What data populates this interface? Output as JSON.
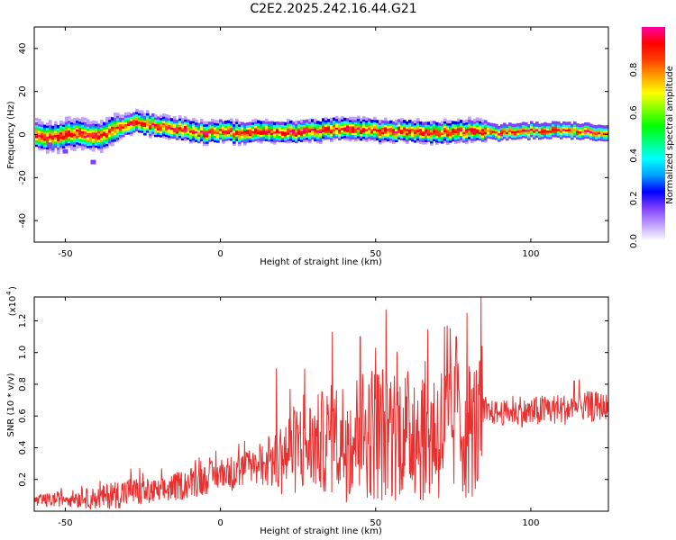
{
  "title": "C2E2.2025.242.16.44.G21",
  "chart_data": [
    {
      "type": "heatmap",
      "title": "C2E2.2025.242.16.44.G21",
      "xlabel": "Height of straight line (km)",
      "ylabel": "Frequency (Hz)",
      "xlim": [
        -60,
        125
      ],
      "ylim": [
        -50,
        50
      ],
      "xticks": [
        -50,
        0,
        50,
        100
      ],
      "yticks": [
        -40,
        -20,
        0,
        20,
        40
      ],
      "colorbar": {
        "label": "Normalized spectral amplitude",
        "range": [
          0,
          1
        ],
        "ticks": [
          "0.0",
          "0.2",
          "0.4",
          "0.6",
          "0.8"
        ],
        "colors": [
          "#ffffff",
          "#c0a0ff",
          "#8040ff",
          "#0000ff",
          "#00a0ff",
          "#00ffff",
          "#00ff80",
          "#00ff00",
          "#80ff00",
          "#ffff00",
          "#ffa000",
          "#ff4000",
          "#ff0000",
          "#ff00a0"
        ]
      },
      "ridge": {
        "x": [
          -60,
          -55,
          -50,
          -45,
          -40,
          -36,
          -32,
          -28,
          -24,
          -20,
          -15,
          -10,
          -5,
          0,
          5,
          10,
          20,
          30,
          40,
          50,
          60,
          70,
          80,
          90,
          100,
          110,
          125
        ],
        "frequency": [
          0,
          -1,
          0,
          1,
          -1,
          2,
          4,
          6,
          5,
          4,
          3,
          2,
          1,
          2,
          1,
          2,
          1,
          2,
          3,
          2,
          2,
          1,
          2,
          1,
          2,
          2,
          1
        ]
      },
      "outliers": [
        {
          "x": -41,
          "frequency": -13
        },
        {
          "x": -55,
          "frequency": -5
        },
        {
          "x": -50,
          "frequency": -8
        }
      ]
    },
    {
      "type": "line",
      "xlabel": "Height of straight line (km)",
      "ylabel": "SNR (10 * v/v)",
      "scale_label": "(x10",
      "scale_exponent": "4",
      "xlim": [
        -60,
        125
      ],
      "ylim": [
        0,
        1.35
      ],
      "xticks": [
        -50,
        0,
        50,
        100
      ],
      "yticks": [
        0.2,
        0.4,
        0.6,
        0.8,
        1.0,
        1.2
      ],
      "ytick_labels": [
        "0.2",
        "0.4",
        "0.6",
        "0.8",
        "1.0",
        "1.2"
      ],
      "color": "#e83030",
      "series": {
        "envelope_x": [
          -60,
          -50,
          -40,
          -30,
          -20,
          -10,
          -5,
          0,
          5,
          10,
          15,
          18,
          20,
          25,
          30,
          35,
          40,
          45,
          50,
          55,
          60,
          65,
          70,
          75,
          80,
          84,
          85,
          90,
          95,
          100,
          105,
          110,
          115,
          120,
          125
        ],
        "baseline": [
          0.06,
          0.08,
          0.08,
          0.12,
          0.12,
          0.18,
          0.2,
          0.24,
          0.24,
          0.28,
          0.3,
          0.3,
          0.35,
          0.4,
          0.42,
          0.45,
          0.45,
          0.5,
          0.5,
          0.5,
          0.5,
          0.5,
          0.5,
          0.52,
          0.52,
          0.52,
          0.62,
          0.62,
          0.62,
          0.62,
          0.64,
          0.64,
          0.65,
          0.66,
          0.66
        ],
        "amplitude": [
          0.04,
          0.05,
          0.07,
          0.1,
          0.08,
          0.1,
          0.1,
          0.1,
          0.12,
          0.12,
          0.15,
          0.2,
          0.25,
          0.3,
          0.3,
          0.35,
          0.4,
          0.4,
          0.45,
          0.45,
          0.4,
          0.45,
          0.45,
          0.45,
          0.45,
          0.45,
          0.08,
          0.08,
          0.08,
          0.1,
          0.1,
          0.1,
          0.1,
          0.1,
          0.08
        ],
        "peaks": [
          {
            "x": 18,
            "y": 0.9
          },
          {
            "x": 36,
            "y": 1.13
          },
          {
            "x": 45,
            "y": 1.1
          },
          {
            "x": 50,
            "y": 1.03
          },
          {
            "x": 73,
            "y": 1.17
          },
          {
            "x": 76,
            "y": 1.1
          },
          {
            "x": 84,
            "y": 1.35
          },
          {
            "x": 114,
            "y": 0.82
          }
        ]
      }
    }
  ]
}
